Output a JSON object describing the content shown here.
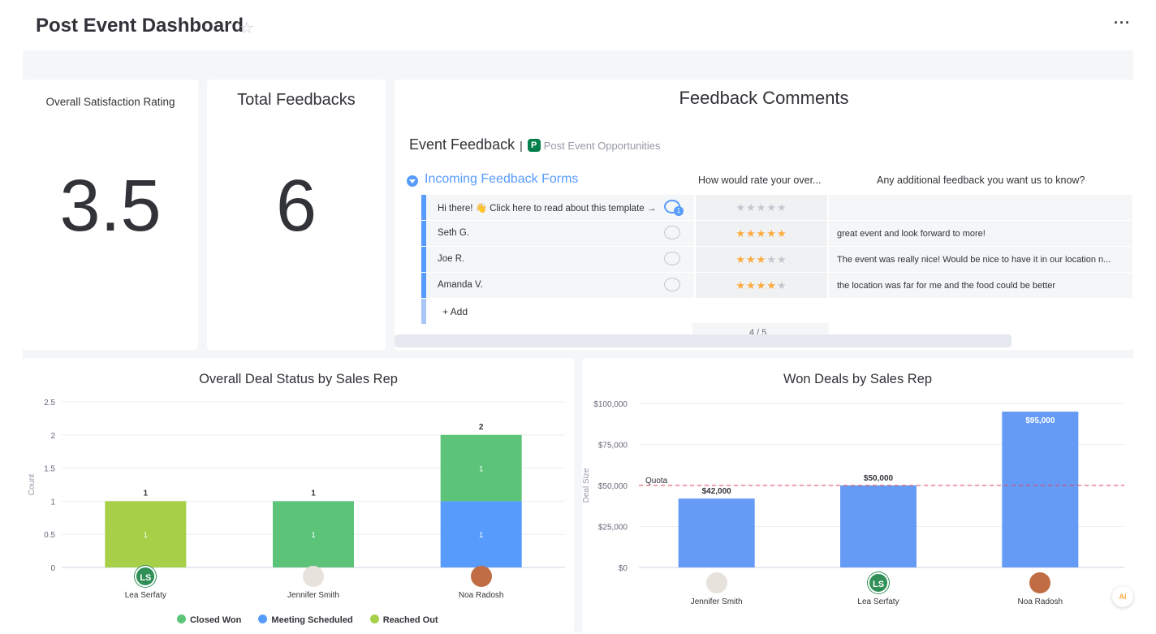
{
  "header": {
    "title": "Post Event Dashboard",
    "star_icon": "star-outline-icon",
    "more_icon": "ellipsis-icon",
    "more_label": "···"
  },
  "satisfaction": {
    "title": "Overall Satisfaction Rating",
    "value": "3.5"
  },
  "feedbacks": {
    "title": "Total Feedbacks",
    "value": "6"
  },
  "comments": {
    "title": "Feedback Comments",
    "board_name": "Event Feedback",
    "separator": "|",
    "badge": "P",
    "board_sub": "Post Event Opportunities",
    "group_name": "Incoming Feedback Forms",
    "columns": [
      "How would rate your over...",
      "Any additional feedback you want us to know?"
    ],
    "rows": [
      {
        "name": "Hi there! 👋 Click here to read about this template →",
        "stars": 0,
        "comment": "",
        "updates": "1"
      },
      {
        "name": "Seth G.",
        "stars": 5,
        "comment": "great event and look forward to more!",
        "updates": ""
      },
      {
        "name": "Joe R.",
        "stars": 3,
        "comment": "The event was really nice! Would be nice to have it in our location n...",
        "updates": ""
      },
      {
        "name": "Amanda V.",
        "stars": 4,
        "comment": "the location was far for me and the food could be better",
        "updates": ""
      }
    ],
    "add_label": "+ Add",
    "summary": "4 / 5",
    "accent": "#579bfc"
  },
  "deal_status_chart": {
    "title": "Overall Deal Status by Sales Rep",
    "ylabel": "Count",
    "y_ticks": [
      "2.5",
      "2",
      "1.5",
      "1",
      "0.5",
      "0"
    ],
    "legend": [
      "Closed Won",
      "Meeting Scheduled",
      "Reached Out"
    ],
    "reps": [
      {
        "initials": "LS",
        "name": "Lea Serfaty"
      },
      {
        "initials": "",
        "name": "Jennifer Smith"
      },
      {
        "initials": "",
        "name": "Noa Radosh"
      }
    ]
  },
  "won_deals_chart": {
    "title": "Won Deals by Sales Rep",
    "ylabel": "Deal Size",
    "y_ticks": [
      "$100,000",
      "$75,000",
      "$50,000",
      "$25,000",
      "$0"
    ],
    "quota_label": "Quota",
    "reps": [
      {
        "initials": "",
        "name": "Jennifer Smith"
      },
      {
        "initials": "LS",
        "name": "Lea Serfaty"
      },
      {
        "initials": "",
        "name": "Noa Radosh"
      }
    ]
  },
  "chart_data": [
    {
      "type": "bar",
      "stacked": true,
      "title": "Overall Deal Status by Sales Rep",
      "xlabel": "",
      "ylabel": "Count",
      "ylim": [
        0,
        2.5
      ],
      "categories": [
        "Lea Serfaty",
        "Jennifer Smith",
        "Noa Radosh"
      ],
      "series": [
        {
          "name": "Meeting Scheduled",
          "color": "#579bfc",
          "values": [
            0,
            0,
            1
          ]
        },
        {
          "name": "Closed Won",
          "color": "#5cc479",
          "values": [
            0,
            1,
            1
          ]
        },
        {
          "name": "Reached Out",
          "color": "#a7cf47",
          "values": [
            1,
            0,
            0
          ]
        }
      ],
      "totals": [
        1,
        1,
        2
      ],
      "grid": true,
      "legend": "bottom"
    },
    {
      "type": "bar",
      "title": "Won Deals by Sales Rep",
      "xlabel": "",
      "ylabel": "Deal Size",
      "ylim": [
        0,
        100000
      ],
      "categories": [
        "Jennifer Smith",
        "Lea Serfaty",
        "Noa Radosh"
      ],
      "values": [
        42000,
        50000,
        95000
      ],
      "labels": [
        "$42,000",
        "$50,000",
        "$95,000"
      ],
      "color": "#659bf5",
      "quota": 50000,
      "quota_color": "#e44258",
      "grid": true
    }
  ]
}
